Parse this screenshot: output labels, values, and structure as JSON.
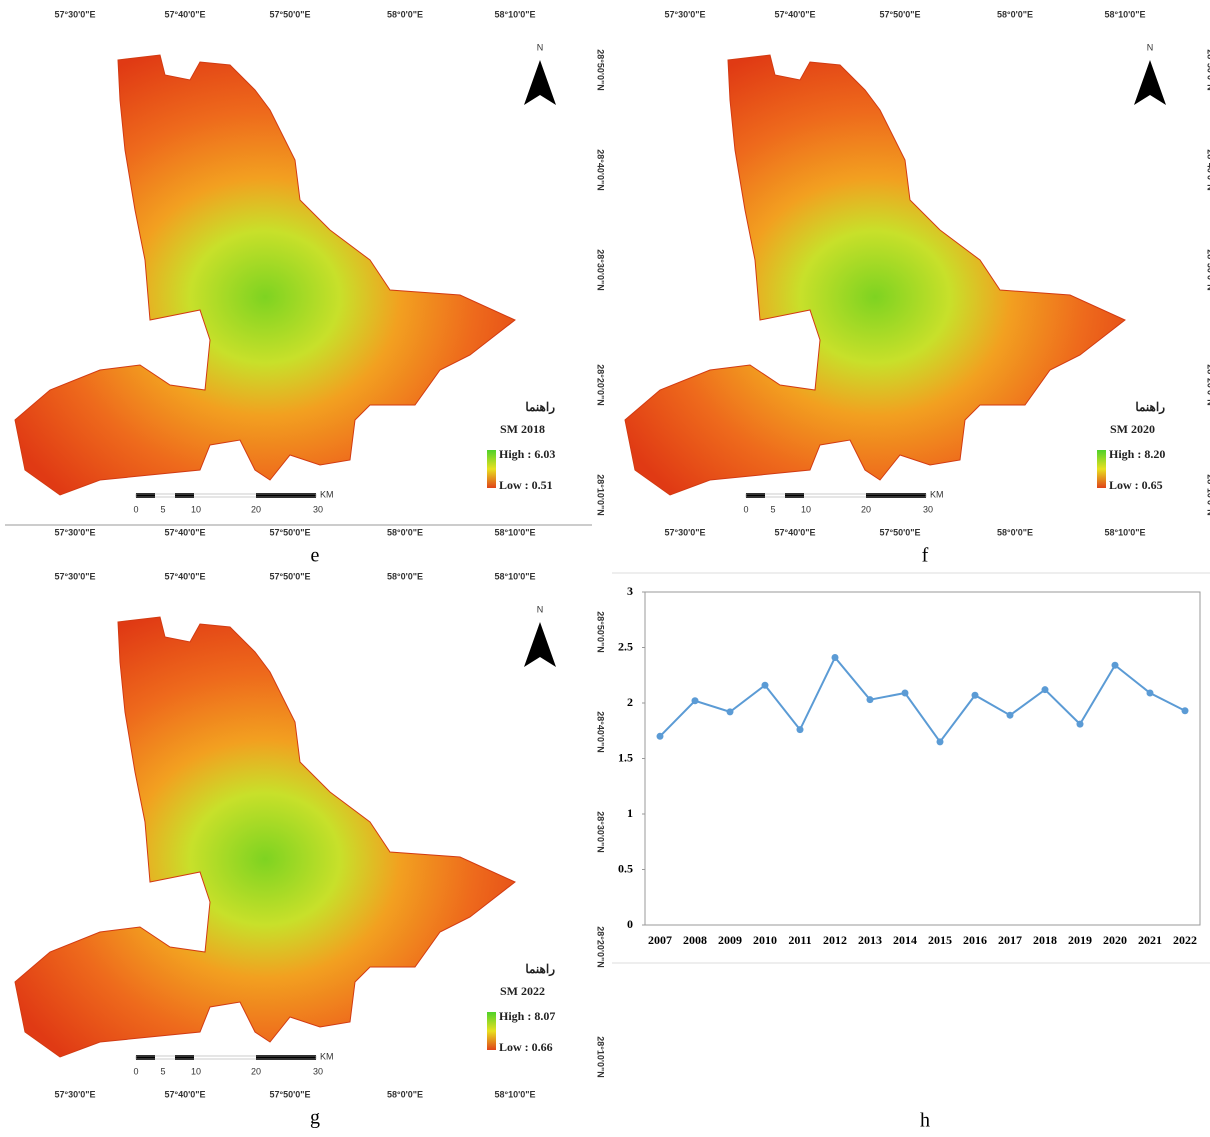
{
  "maps": [
    {
      "panel": "e",
      "legend_title": "راهنما",
      "layer": "SM 2018",
      "high": "High : 6.03",
      "low": "Low : 0.51"
    },
    {
      "panel": "f",
      "legend_title": "راهنما",
      "layer": "SM 2020",
      "high": "High : 8.20",
      "low": "Low : 0.65"
    },
    {
      "panel": "g",
      "legend_title": "راهنما",
      "layer": "SM 2022",
      "high": "High : 8.07",
      "low": "Low : 0.66"
    }
  ],
  "lon_labels": [
    "57°30'0\"E",
    "57°40'0\"E",
    "57°50'0\"E",
    "58°0'0\"E",
    "58°10'0\"E"
  ],
  "lat_labels": [
    "28°50'0\"N",
    "28°40'0\"N",
    "28°30'0\"N",
    "28°20'0\"N",
    "28°10'0\"N"
  ],
  "scale_labels": [
    "0",
    "5",
    "10",
    "20",
    "30"
  ],
  "scale_unit": "KM",
  "north": "N",
  "chart_panel": "h",
  "chart_data": {
    "type": "line",
    "categories": [
      "2007",
      "2008",
      "2009",
      "2010",
      "2011",
      "2012",
      "2013",
      "2014",
      "2015",
      "2016",
      "2017",
      "2018",
      "2019",
      "2020",
      "2021",
      "2022"
    ],
    "values": [
      1.7,
      2.02,
      1.92,
      2.16,
      1.76,
      2.41,
      2.03,
      2.09,
      1.65,
      2.07,
      1.89,
      2.12,
      1.81,
      2.34,
      2.09,
      1.93
    ],
    "color": "#5b9bd5",
    "ylim": [
      0,
      3
    ],
    "yticks": [
      0,
      0.5,
      1,
      1.5,
      2,
      2.5,
      3
    ]
  }
}
